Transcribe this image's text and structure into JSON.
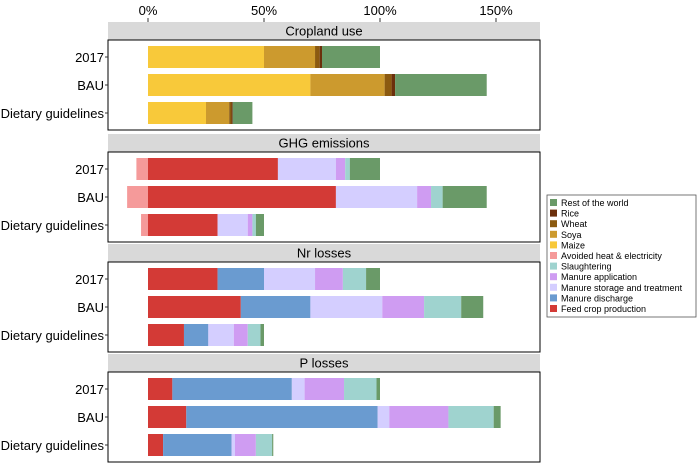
{
  "chart_data": {
    "type": "bar",
    "orientation": "horizontal",
    "stacked": true,
    "x_axis": {
      "ticks": [
        0,
        50,
        100,
        150
      ],
      "tick_labels": [
        "0%",
        "50%",
        "100%",
        "150%"
      ],
      "xlim": [
        -18,
        168
      ],
      "position": "top"
    },
    "categories": [
      "2017",
      "BAU",
      "Dietary guidelines"
    ],
    "legend_position": "right",
    "colors": {
      "Rest of the world": "#6a9a68",
      "Rice": "#6b2f0c",
      "Wheat": "#8b5a10",
      "Soya": "#cc9a2e",
      "Maize": "#f8c93a",
      "Avoided heat & electricity": "#f59a9a",
      "Slaughtering": "#9fd3cf",
      "Manure application": "#cf9cf2",
      "Manure storage and treatment": "#d4ceff",
      "Manure discharge": "#6a9bd0",
      "Feed crop production": "#d33a36"
    },
    "legend": [
      "Rest of the world",
      "Rice",
      "Wheat",
      "Soya",
      "Maize",
      "Avoided heat & electricity",
      "Slaughtering",
      "Manure application",
      "Manure storage and treatment",
      "Manure discharge",
      "Feed crop production"
    ],
    "panels": [
      {
        "title": "Cropland use",
        "rows": [
          {
            "category": "2017",
            "negative": [],
            "positive": [
              {
                "name": "Maize",
                "value": 50
              },
              {
                "name": "Soya",
                "value": 22
              },
              {
                "name": "Wheat",
                "value": 2
              },
              {
                "name": "Rice",
                "value": 1
              },
              {
                "name": "Rest of the world",
                "value": 25
              }
            ]
          },
          {
            "category": "BAU",
            "negative": [],
            "positive": [
              {
                "name": "Maize",
                "value": 70
              },
              {
                "name": "Soya",
                "value": 32
              },
              {
                "name": "Wheat",
                "value": 3
              },
              {
                "name": "Rice",
                "value": 1.5
              },
              {
                "name": "Rest of the world",
                "value": 39.5
              }
            ]
          },
          {
            "category": "Dietary guidelines",
            "negative": [],
            "positive": [
              {
                "name": "Maize",
                "value": 25
              },
              {
                "name": "Soya",
                "value": 10
              },
              {
                "name": "Wheat",
                "value": 1
              },
              {
                "name": "Rice",
                "value": 0.5
              },
              {
                "name": "Rest of the world",
                "value": 8.5
              }
            ]
          }
        ]
      },
      {
        "title": "GHG emissions",
        "rows": [
          {
            "category": "2017",
            "negative": [
              {
                "name": "Avoided heat & electricity",
                "value": -5
              }
            ],
            "positive": [
              {
                "name": "Feed crop production",
                "value": 56
              },
              {
                "name": "Manure storage and treatment",
                "value": 25
              },
              {
                "name": "Manure application",
                "value": 4
              },
              {
                "name": "Slaughtering",
                "value": 2
              },
              {
                "name": "Rest of the world",
                "value": 13
              }
            ]
          },
          {
            "category": "BAU",
            "negative": [
              {
                "name": "Avoided heat & electricity",
                "value": -9
              }
            ],
            "positive": [
              {
                "name": "Feed crop production",
                "value": 81
              },
              {
                "name": "Manure storage and treatment",
                "value": 35
              },
              {
                "name": "Manure application",
                "value": 6
              },
              {
                "name": "Slaughtering",
                "value": 5
              },
              {
                "name": "Rest of the world",
                "value": 19
              }
            ]
          },
          {
            "category": "Dietary guidelines",
            "negative": [
              {
                "name": "Avoided heat & electricity",
                "value": -3
              }
            ],
            "positive": [
              {
                "name": "Feed crop production",
                "value": 30
              },
              {
                "name": "Manure storage and treatment",
                "value": 13
              },
              {
                "name": "Manure application",
                "value": 2
              },
              {
                "name": "Slaughtering",
                "value": 1.5
              },
              {
                "name": "Rest of the world",
                "value": 3.5
              }
            ]
          }
        ]
      },
      {
        "title": "Nr losses",
        "rows": [
          {
            "category": "2017",
            "negative": [],
            "positive": [
              {
                "name": "Feed crop production",
                "value": 30
              },
              {
                "name": "Manure discharge",
                "value": 20
              },
              {
                "name": "Manure storage and treatment",
                "value": 22
              },
              {
                "name": "Manure application",
                "value": 12
              },
              {
                "name": "Slaughtering",
                "value": 10
              },
              {
                "name": "Rest of the world",
                "value": 6
              }
            ]
          },
          {
            "category": "BAU",
            "negative": [],
            "positive": [
              {
                "name": "Feed crop production",
                "value": 40
              },
              {
                "name": "Manure discharge",
                "value": 30
              },
              {
                "name": "Manure storage and treatment",
                "value": 31
              },
              {
                "name": "Manure application",
                "value": 18
              },
              {
                "name": "Slaughtering",
                "value": 16
              },
              {
                "name": "Rest of the world",
                "value": 9.5
              }
            ]
          },
          {
            "category": "Dietary guidelines",
            "negative": [],
            "positive": [
              {
                "name": "Feed crop production",
                "value": 15.5
              },
              {
                "name": "Manure discharge",
                "value": 10.5
              },
              {
                "name": "Manure storage and treatment",
                "value": 11
              },
              {
                "name": "Manure application",
                "value": 6
              },
              {
                "name": "Slaughtering",
                "value": 5.5
              },
              {
                "name": "Rest of the world",
                "value": 1.5
              }
            ]
          }
        ]
      },
      {
        "title": "P losses",
        "rows": [
          {
            "category": "2017",
            "negative": [],
            "positive": [
              {
                "name": "Feed crop production",
                "value": 10.5
              },
              {
                "name": "Manure discharge",
                "value": 51.5
              },
              {
                "name": "Manure storage and treatment",
                "value": 5.5
              },
              {
                "name": "Manure application",
                "value": 17
              },
              {
                "name": "Slaughtering",
                "value": 14
              },
              {
                "name": "Rest of the world",
                "value": 1.5
              }
            ]
          },
          {
            "category": "BAU",
            "negative": [],
            "positive": [
              {
                "name": "Feed crop production",
                "value": 16.5
              },
              {
                "name": "Manure discharge",
                "value": 82.5
              },
              {
                "name": "Manure storage and treatment",
                "value": 5
              },
              {
                "name": "Manure application",
                "value": 25.5
              },
              {
                "name": "Slaughtering",
                "value": 19.5
              },
              {
                "name": "Rest of the world",
                "value": 3
              }
            ]
          },
          {
            "category": "Dietary guidelines",
            "negative": [],
            "positive": [
              {
                "name": "Feed crop production",
                "value": 6.5
              },
              {
                "name": "Manure discharge",
                "value": 29.5
              },
              {
                "name": "Manure storage and treatment",
                "value": 1.5
              },
              {
                "name": "Manure application",
                "value": 9
              },
              {
                "name": "Slaughtering",
                "value": 7
              },
              {
                "name": "Rest of the world",
                "value": 0.5
              }
            ]
          }
        ]
      }
    ]
  }
}
